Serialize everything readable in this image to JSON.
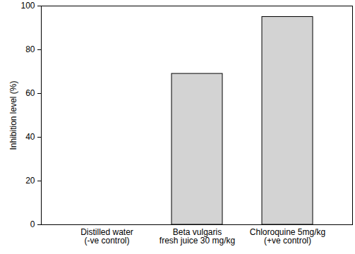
{
  "chart_data": {
    "type": "bar",
    "categories": [
      "Distilled water\n(-ve control)",
      "Beta vulgaris\nfresh juice 30 mg/kg",
      "Chloroquine 5mg/kg\n(+ve control)"
    ],
    "values": [
      0,
      69,
      95
    ],
    "color": "#d3d3d3",
    "y_label": "Inhibition level (%)",
    "ylim": [
      0,
      100
    ],
    "yticks": [
      0,
      20,
      40,
      60,
      80,
      100
    ],
    "grid": false
  }
}
